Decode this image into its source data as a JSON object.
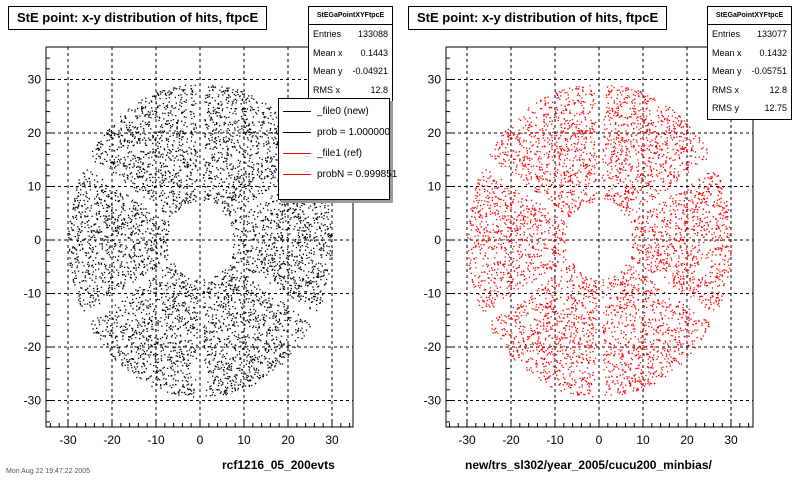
{
  "chart_data": [
    {
      "type": "scatter",
      "title": "StE point: x-y distribution of hits, ftpcE",
      "xlabel": "rcf1216_05_200evts",
      "ylabel": "",
      "xlim": [
        -35,
        35
      ],
      "ylim": [
        -34,
        34
      ],
      "xticks": [
        "-30",
        "-20",
        "-10",
        "0",
        "10",
        "20",
        "30"
      ],
      "yticks": [
        "-30",
        "-20",
        "-10",
        "0",
        "10",
        "20",
        "30"
      ],
      "grid": true,
      "distribution": {
        "inner_radius": 7.5,
        "outer_radius": 30,
        "sectors": 6,
        "gap_angles_deg": [
          90,
          150,
          210,
          270,
          330,
          30
        ]
      },
      "color": "#000000",
      "stats": {
        "header": "StEGaPointXYFtpcE",
        "rows": [
          {
            "label": "Entries",
            "value": "133088"
          },
          {
            "label": "Mean x",
            "value": "0.1443"
          },
          {
            "label": "Mean y",
            "value": "-0.04921"
          },
          {
            "label": "RMS x",
            "value": "12.8"
          }
        ]
      },
      "legend": {
        "placement": "top-right",
        "entries": [
          {
            "label": "_file0 (new)",
            "color": "#000000"
          },
          {
            "label": "prob = 1.000000",
            "color": "#000000"
          },
          {
            "label": "_file1 (ref)",
            "color": "#ff0000"
          },
          {
            "label": "probN = 0.999851",
            "color": "#ff0000"
          }
        ]
      }
    },
    {
      "type": "scatter",
      "title": "StE point: x-y distribution of hits, ftpcE",
      "xlabel": "new/trs_sl302/year_2005/cucu200_minbias/",
      "ylabel": "",
      "xlim": [
        -35,
        35
      ],
      "ylim": [
        -34,
        34
      ],
      "xticks": [
        "-30",
        "-20",
        "-10",
        "0",
        "10",
        "20",
        "30"
      ],
      "yticks": [
        "-30",
        "-20",
        "-10",
        "0",
        "10",
        "20",
        "30"
      ],
      "grid": true,
      "distribution": {
        "inner_radius": 7.5,
        "outer_radius": 30,
        "sectors": 6,
        "gap_angles_deg": [
          90,
          150,
          210,
          270,
          330,
          30
        ]
      },
      "color": "#ff0000",
      "stats": {
        "header": "StEGaPointXYFtpcE",
        "rows": [
          {
            "label": "Entries",
            "value": "133077"
          },
          {
            "label": "Mean x",
            "value": "0.1432"
          },
          {
            "label": "Mean y",
            "value": "-0.05751"
          },
          {
            "label": "RMS x",
            "value": "12.8"
          },
          {
            "label": "RMS y",
            "value": "12.75"
          }
        ]
      }
    }
  ],
  "footer": "Mon Aug 22 19:47:22 2005"
}
